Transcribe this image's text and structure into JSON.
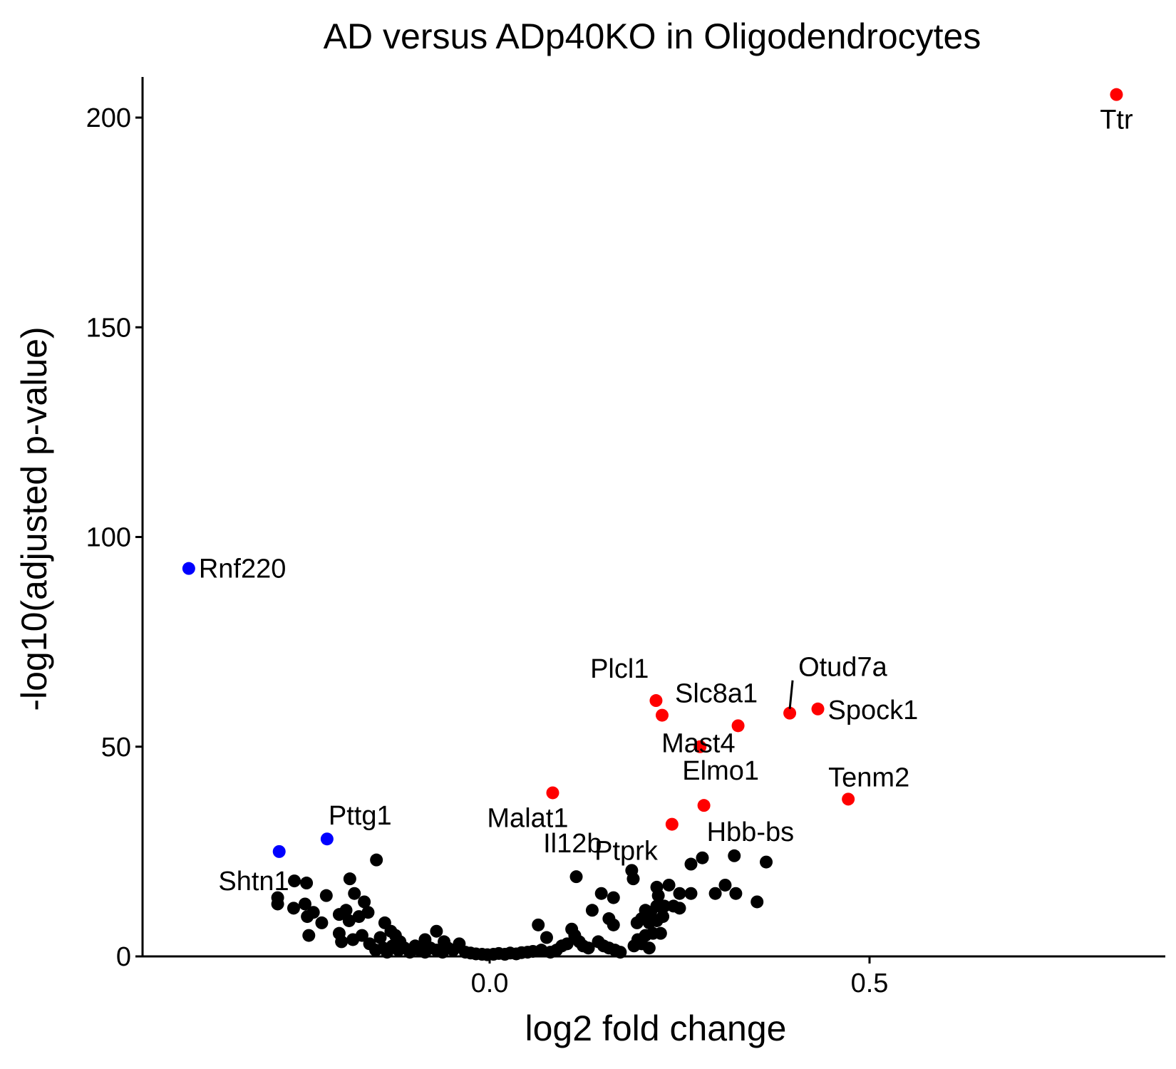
{
  "chart_data": {
    "type": "scatter",
    "title": "AD versus ADp40KO in Oligodendrocytes",
    "xlabel": "log2 fold change",
    "ylabel": "-log10(adjusted p-value)",
    "xlim": [
      -0.46,
      0.875
    ],
    "ylim": [
      0,
      210
    ],
    "x_ticks": [
      0.0,
      0.5
    ],
    "x_tick_labels": [
      "0.0",
      "0.5"
    ],
    "y_ticks": [
      0,
      50,
      100,
      150,
      200
    ],
    "y_tick_labels": [
      "0",
      "50",
      "100",
      "150",
      "200"
    ],
    "grid": false,
    "legend": "none",
    "colors": {
      "up": "#ff0000",
      "down": "#0000ff",
      "ns": "#000000"
    },
    "series": [
      {
        "group": "up",
        "color": "#ff0000",
        "points": [
          {
            "x": 0.825,
            "y": 205.5,
            "label": "Ttr"
          },
          {
            "x": 0.219,
            "y": 61.0,
            "label": "Plcl1"
          },
          {
            "x": 0.227,
            "y": 57.5,
            "label": "Slc8a1"
          },
          {
            "x": 0.327,
            "y": 55.0,
            "label": "Mast4"
          },
          {
            "x": 0.395,
            "y": 58.0,
            "label": "Otud7a"
          },
          {
            "x": 0.432,
            "y": 59.0,
            "label": "Spock1"
          },
          {
            "x": 0.277,
            "y": 50.0,
            "label": "Elmo1"
          },
          {
            "x": 0.472,
            "y": 37.5,
            "label": "Tenm2"
          },
          {
            "x": 0.083,
            "y": 39.0,
            "label": "Malat1"
          },
          {
            "x": 0.282,
            "y": 36.0,
            "label": "Hbb-bs"
          },
          {
            "x": 0.24,
            "y": 31.5,
            "label": "Ptprk"
          }
        ]
      },
      {
        "group": "down",
        "color": "#0000ff",
        "points": [
          {
            "x": -0.396,
            "y": 92.5,
            "label": "Rnf220"
          },
          {
            "x": -0.214,
            "y": 28.0,
            "label": "Pttg1"
          },
          {
            "x": -0.277,
            "y": 25.0,
            "label": "Shtn1"
          }
        ]
      },
      {
        "group": "ns",
        "color": "#000000",
        "points": [
          {
            "x": 0.114,
            "y": 19.0,
            "label": "Il12b"
          },
          {
            "x": -0.149,
            "y": 23.0
          },
          {
            "x": -0.184,
            "y": 18.5
          },
          {
            "x": -0.215,
            "y": 14.5
          },
          {
            "x": -0.279,
            "y": 14.0
          },
          {
            "x": -0.279,
            "y": 12.5
          },
          {
            "x": -0.257,
            "y": 18.0
          },
          {
            "x": -0.241,
            "y": 17.5
          },
          {
            "x": -0.258,
            "y": 11.5
          },
          {
            "x": -0.243,
            "y": 12.5
          },
          {
            "x": -0.24,
            "y": 9.5
          },
          {
            "x": -0.232,
            "y": 10.5
          },
          {
            "x": -0.221,
            "y": 8.0
          },
          {
            "x": -0.238,
            "y": 5.0
          },
          {
            "x": -0.198,
            "y": 10.0
          },
          {
            "x": -0.189,
            "y": 11.0
          },
          {
            "x": -0.178,
            "y": 15.0
          },
          {
            "x": -0.165,
            "y": 13.0
          },
          {
            "x": -0.16,
            "y": 10.5
          },
          {
            "x": -0.172,
            "y": 9.5
          },
          {
            "x": -0.185,
            "y": 8.5
          },
          {
            "x": -0.198,
            "y": 5.5
          },
          {
            "x": -0.195,
            "y": 3.5
          },
          {
            "x": -0.18,
            "y": 4.0
          },
          {
            "x": -0.168,
            "y": 5.0
          },
          {
            "x": -0.158,
            "y": 3.0
          },
          {
            "x": -0.144,
            "y": 4.5
          },
          {
            "x": -0.138,
            "y": 8.0
          },
          {
            "x": -0.13,
            "y": 6.0
          },
          {
            "x": -0.124,
            "y": 5.0
          },
          {
            "x": -0.118,
            "y": 3.5
          },
          {
            "x": -0.15,
            "y": 1.5
          },
          {
            "x": -0.14,
            "y": 2.0
          },
          {
            "x": -0.135,
            "y": 1.0
          },
          {
            "x": -0.128,
            "y": 2.5
          },
          {
            "x": -0.12,
            "y": 1.5
          },
          {
            "x": -0.112,
            "y": 2.0
          },
          {
            "x": -0.105,
            "y": 1.0
          },
          {
            "x": -0.098,
            "y": 2.5
          },
          {
            "x": -0.092,
            "y": 1.5
          },
          {
            "x": -0.085,
            "y": 1.0
          },
          {
            "x": -0.078,
            "y": 2.0
          },
          {
            "x": -0.07,
            "y": 1.5
          },
          {
            "x": -0.062,
            "y": 1.0
          },
          {
            "x": -0.055,
            "y": 2.0
          },
          {
            "x": -0.048,
            "y": 1.5
          },
          {
            "x": -0.04,
            "y": 3.0
          },
          {
            "x": -0.07,
            "y": 6.0
          },
          {
            "x": -0.085,
            "y": 4.0
          },
          {
            "x": -0.06,
            "y": 3.5
          },
          {
            "x": -0.032,
            "y": 1.0
          },
          {
            "x": -0.025,
            "y": 0.8
          },
          {
            "x": -0.018,
            "y": 0.6
          },
          {
            "x": -0.01,
            "y": 0.5
          },
          {
            "x": -0.003,
            "y": 0.4
          },
          {
            "x": 0.005,
            "y": 0.5
          },
          {
            "x": 0.012,
            "y": 0.7
          },
          {
            "x": 0.02,
            "y": 0.5
          },
          {
            "x": 0.027,
            "y": 0.8
          },
          {
            "x": 0.035,
            "y": 0.6
          },
          {
            "x": 0.042,
            "y": 0.9
          },
          {
            "x": 0.05,
            "y": 1.0
          },
          {
            "x": 0.057,
            "y": 1.2
          },
          {
            "x": 0.064,
            "y": 7.5
          },
          {
            "x": 0.075,
            "y": 4.5
          },
          {
            "x": 0.068,
            "y": 1.5
          },
          {
            "x": 0.08,
            "y": 1.0
          },
          {
            "x": 0.088,
            "y": 1.5
          },
          {
            "x": 0.095,
            "y": 2.5
          },
          {
            "x": 0.102,
            "y": 3.0
          },
          {
            "x": 0.108,
            "y": 6.5
          },
          {
            "x": 0.112,
            "y": 5.0
          },
          {
            "x": 0.118,
            "y": 3.5
          },
          {
            "x": 0.123,
            "y": 2.5
          },
          {
            "x": 0.13,
            "y": 2.0
          },
          {
            "x": 0.135,
            "y": 11.0
          },
          {
            "x": 0.147,
            "y": 15.0
          },
          {
            "x": 0.163,
            "y": 14.0
          },
          {
            "x": 0.157,
            "y": 9.0
          },
          {
            "x": 0.163,
            "y": 7.5
          },
          {
            "x": 0.143,
            "y": 3.5
          },
          {
            "x": 0.15,
            "y": 2.5
          },
          {
            "x": 0.157,
            "y": 2.0
          },
          {
            "x": 0.165,
            "y": 1.5
          },
          {
            "x": 0.172,
            "y": 1.0
          },
          {
            "x": 0.187,
            "y": 20.5
          },
          {
            "x": 0.189,
            "y": 18.5
          },
          {
            "x": 0.22,
            "y": 16.5
          },
          {
            "x": 0.236,
            "y": 17.0
          },
          {
            "x": 0.222,
            "y": 14.5
          },
          {
            "x": 0.205,
            "y": 11.0
          },
          {
            "x": 0.212,
            "y": 10.5
          },
          {
            "x": 0.22,
            "y": 12.0
          },
          {
            "x": 0.23,
            "y": 12.0
          },
          {
            "x": 0.242,
            "y": 12.0
          },
          {
            "x": 0.25,
            "y": 11.5
          },
          {
            "x": 0.25,
            "y": 15.0
          },
          {
            "x": 0.194,
            "y": 8.0
          },
          {
            "x": 0.2,
            "y": 9.0
          },
          {
            "x": 0.21,
            "y": 8.0
          },
          {
            "x": 0.22,
            "y": 8.5
          },
          {
            "x": 0.228,
            "y": 9.5
          },
          {
            "x": 0.195,
            "y": 4.0
          },
          {
            "x": 0.205,
            "y": 5.0
          },
          {
            "x": 0.215,
            "y": 5.5
          },
          {
            "x": 0.225,
            "y": 5.5
          },
          {
            "x": 0.19,
            "y": 2.5
          },
          {
            "x": 0.2,
            "y": 3.0
          },
          {
            "x": 0.21,
            "y": 2.0
          },
          {
            "x": 0.265,
            "y": 22.0
          },
          {
            "x": 0.28,
            "y": 23.5
          },
          {
            "x": 0.322,
            "y": 24.0
          },
          {
            "x": 0.364,
            "y": 22.5
          },
          {
            "x": 0.265,
            "y": 15.0
          },
          {
            "x": 0.297,
            "y": 15.0
          },
          {
            "x": 0.31,
            "y": 17.0
          },
          {
            "x": 0.324,
            "y": 15.0
          },
          {
            "x": 0.352,
            "y": 13.0
          }
        ]
      }
    ]
  }
}
